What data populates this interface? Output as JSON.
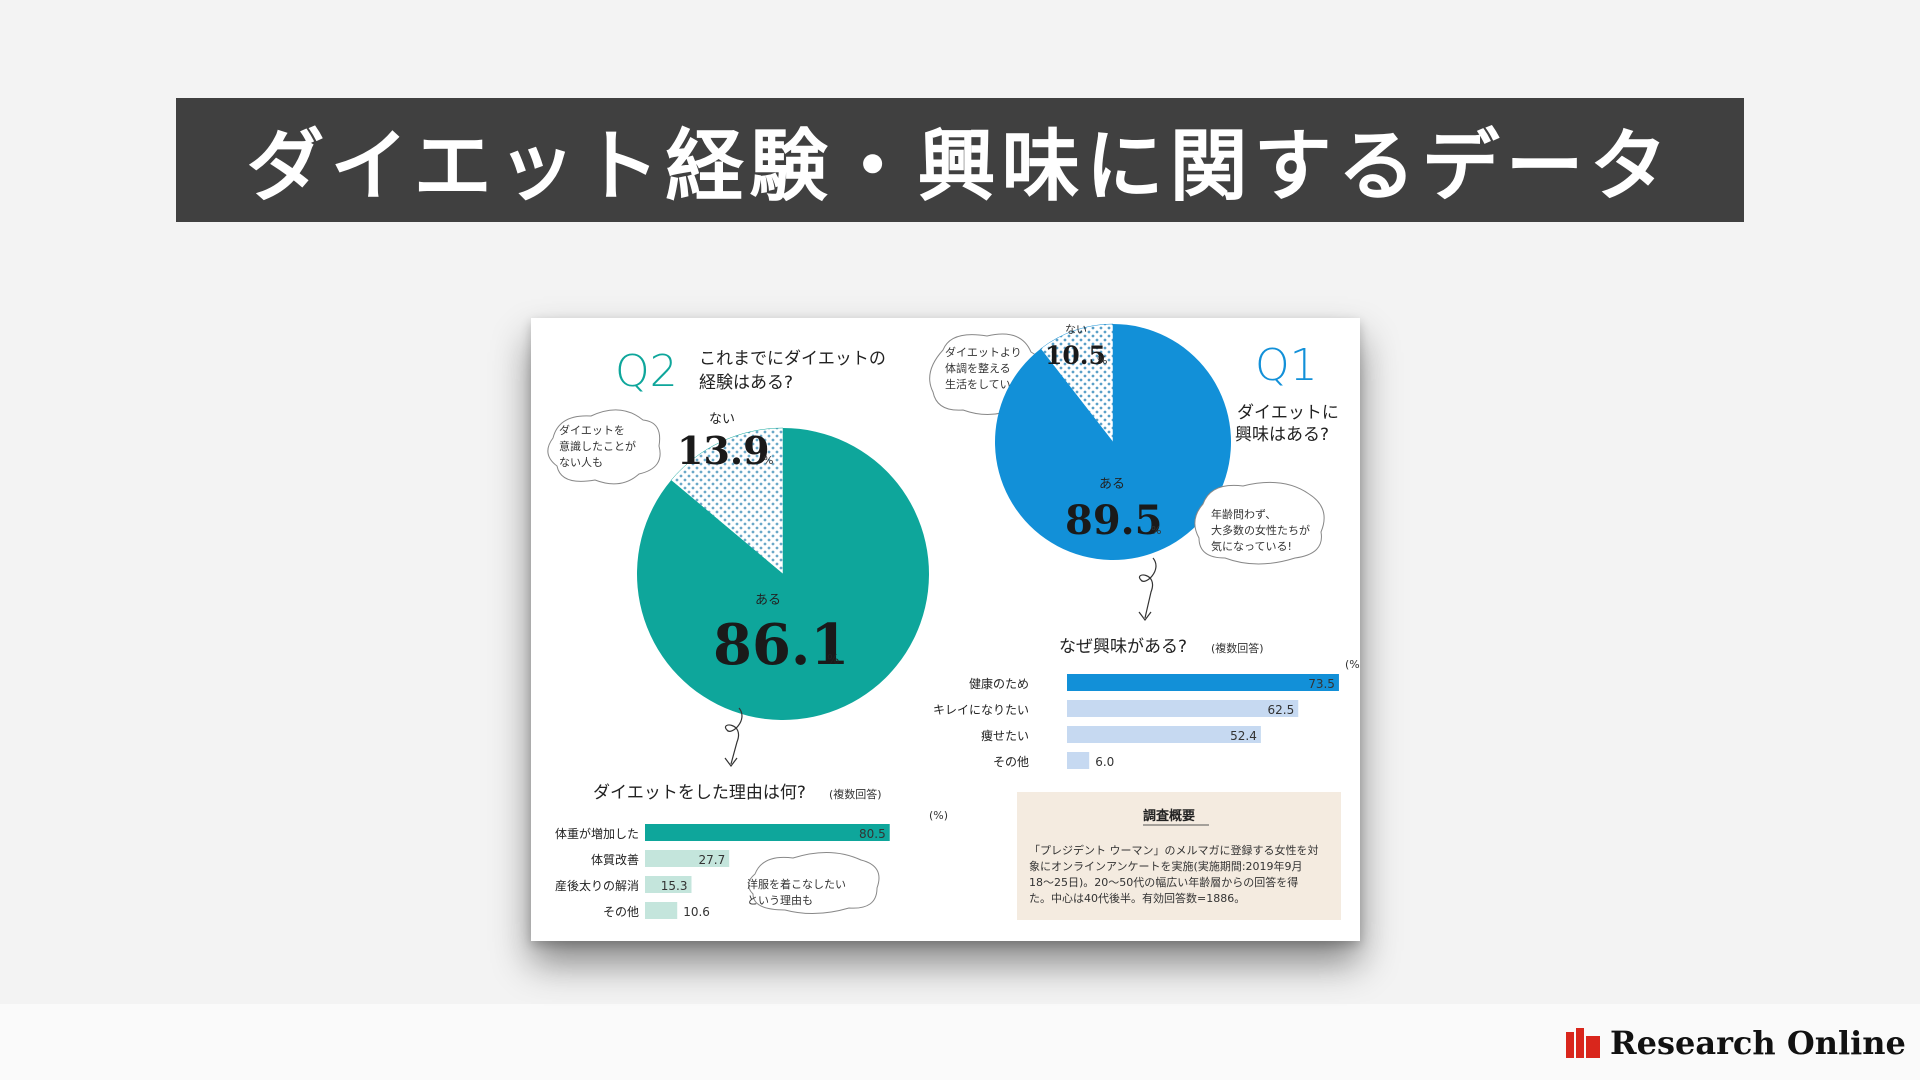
{
  "page_title": "ダイエット経験・興味に関するデータ",
  "logo_text": "Research Online",
  "colors": {
    "teal": "#0ea69b",
    "blue": "#1290d8",
    "teal_light": "#c4e5dc",
    "blue_light": "#c6d9f1",
    "summary_bg": "#f4ebe0"
  },
  "q2": {
    "num": "Q2",
    "question_line1": "これまでにダイエットの",
    "question_line2": "経験はある?",
    "bubble_lines": [
      "ダイエットを",
      "意識したことが",
      "ない人も"
    ],
    "no_label": "ない",
    "no_value": "13.9",
    "yes_label": "ある",
    "yes_value": "86.1",
    "pct": "%",
    "bars_title": "ダイエットをした理由は何?",
    "bars_title_note": "(複数回答)",
    "bars_unit": "(%)",
    "bubble2_lines": [
      "洋服を着こなしたい",
      "という理由も"
    ]
  },
  "q1": {
    "num": "Q1",
    "question_line1": "ダイエットに",
    "question_line2": "興味はある?",
    "bubble_lines": [
      "ダイエットより",
      "体調を整える",
      "生活をしている"
    ],
    "no_label": "ない",
    "no_value": "10.5",
    "yes_label": "ある",
    "yes_value": "89.5",
    "pct": "%",
    "bubble2_lines": [
      "年齢問わず、",
      "大多数の女性たちが",
      "気になっている!"
    ],
    "bars_title": "なぜ興味がある?",
    "bars_title_note": "(複数回答)",
    "bars_unit": "(%)"
  },
  "summary": {
    "title": "調査概要",
    "lines": [
      "「プレジデント ウーマン」のメルマガに登録する女性を対",
      "象にオンラインアンケートを実施(実施期間:2019年9月",
      "18〜25日)。20〜50代の幅広い年齢層からの回答を得",
      "た。中心は40代後半。有効回答数=1886。"
    ]
  },
  "chart_data": [
    {
      "type": "pie",
      "title": "これまでにダイエットの経験はある?",
      "categories": [
        "ある",
        "ない"
      ],
      "values": [
        86.1,
        13.9
      ],
      "unit": "%"
    },
    {
      "type": "pie",
      "title": "ダイエットに興味はある?",
      "categories": [
        "ある",
        "ない"
      ],
      "values": [
        89.5,
        10.5
      ],
      "unit": "%"
    },
    {
      "type": "bar",
      "orientation": "horizontal",
      "title": "なぜ興味がある?(複数回答)",
      "categories": [
        "健康のため",
        "キレイになりたい",
        "痩せたい",
        "その他"
      ],
      "values": [
        73.5,
        62.5,
        52.4,
        6.0
      ],
      "value_labels": [
        "73.5",
        "62.5",
        "52.4",
        "6.0"
      ],
      "unit": "(%)"
    },
    {
      "type": "bar",
      "orientation": "horizontal",
      "title": "ダイエットをした理由は何?(複数回答)",
      "categories": [
        "体重が増加した",
        "体質改善",
        "産後太りの解消",
        "その他"
      ],
      "values": [
        80.5,
        27.7,
        15.3,
        10.6
      ],
      "value_labels": [
        "80.5",
        "27.7",
        "15.3",
        "10.6"
      ],
      "unit": "(%)"
    }
  ]
}
